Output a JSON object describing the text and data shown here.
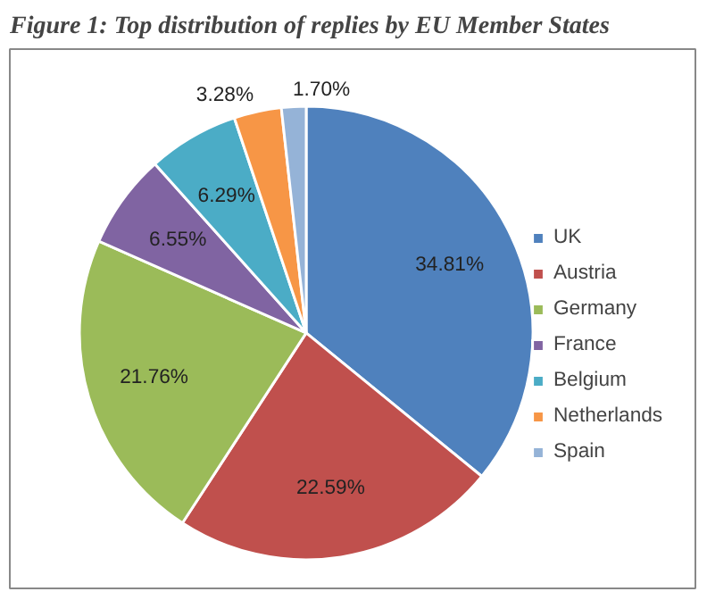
{
  "chart_data": {
    "type": "pie",
    "title": "Figure 1: Top distribution of replies by EU Member States",
    "categories": [
      "UK",
      "Austria",
      "Germany",
      "France",
      "Belgium",
      "Netherlands",
      "Spain"
    ],
    "values": [
      34.81,
      22.59,
      21.76,
      6.55,
      6.29,
      3.28,
      1.7
    ],
    "value_labels": [
      "34.81%",
      "22.59%",
      "21.76%",
      "6.55%",
      "6.29%",
      "3.28%",
      "1.70%"
    ],
    "colors": [
      "#4f81bd",
      "#c0504d",
      "#9bbb59",
      "#8064a2",
      "#4bacc6",
      "#f79646",
      "#95b3d7"
    ],
    "legend": "right"
  }
}
